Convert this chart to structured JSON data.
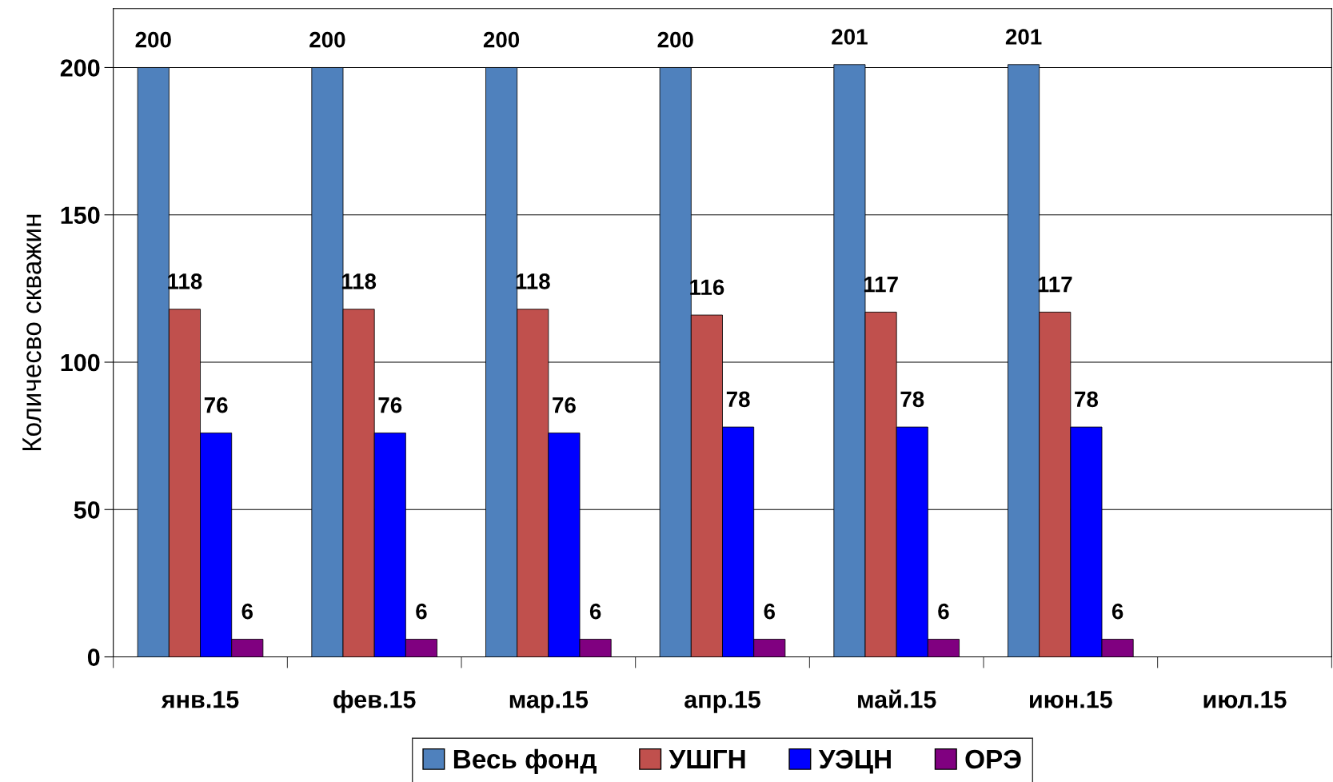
{
  "chart_data": {
    "type": "bar",
    "ylabel": "Количесво скважин",
    "categories": [
      "янв.15",
      "фев.15",
      "мар.15",
      "апр.15",
      "май.15",
      "июн.15",
      "июл.15"
    ],
    "series": [
      {
        "name": "Весь фонд",
        "color": "#4f81bd",
        "values": [
          200,
          200,
          200,
          200,
          201,
          201,
          null
        ]
      },
      {
        "name": "УШГН",
        "color": "#c0504d",
        "values": [
          118,
          118,
          118,
          116,
          117,
          117,
          null
        ]
      },
      {
        "name": "УЭЦН",
        "color": "#0000ff",
        "values": [
          76,
          76,
          76,
          78,
          78,
          78,
          null
        ]
      },
      {
        "name": "ОРЭ",
        "color": "#800080",
        "values": [
          6,
          6,
          6,
          6,
          6,
          6,
          null
        ]
      }
    ],
    "ylim": [
      0,
      220
    ],
    "yticks": [
      0,
      50,
      100,
      150,
      200
    ],
    "grid": "y",
    "legend": "bottom",
    "data_labels": true
  }
}
